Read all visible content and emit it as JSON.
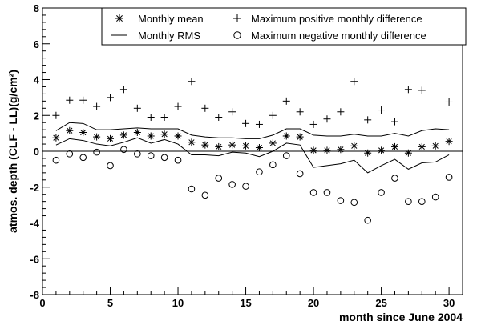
{
  "chart_data": {
    "type": "scatter",
    "xlabel": "month since June 2004",
    "ylabel": "atmos. depth (CLF - LL)(g/cm²)",
    "xlim": [
      0,
      31
    ],
    "ylim": [
      -8,
      8
    ],
    "x_ticks": [
      0,
      5,
      10,
      15,
      20,
      25,
      30
    ],
    "y_ticks": [
      -8,
      -6,
      -4,
      -2,
      0,
      2,
      4,
      6,
      8
    ],
    "grid": false,
    "legend_position": "top-right",
    "x": [
      1,
      2,
      3,
      4,
      5,
      6,
      7,
      8,
      9,
      10,
      11,
      12,
      13,
      14,
      15,
      16,
      17,
      18,
      19,
      20,
      21,
      22,
      23,
      24,
      25,
      26,
      27,
      28,
      29,
      30
    ],
    "series": [
      {
        "name": "Monthly mean",
        "marker": "asterisk",
        "values": [
          0.75,
          1.15,
          1.05,
          0.8,
          0.7,
          0.9,
          1.05,
          0.85,
          0.95,
          0.85,
          0.5,
          0.35,
          0.25,
          0.35,
          0.3,
          0.2,
          0.45,
          0.85,
          0.8,
          0.05,
          0.05,
          0.1,
          0.3,
          -0.1,
          0.05,
          0.25,
          -0.1,
          0.25,
          0.3,
          0.55
        ]
      },
      {
        "name": "Monthly RMS",
        "marker": "line",
        "upper": [
          1.15,
          1.6,
          1.55,
          1.2,
          1.2,
          1.25,
          1.3,
          1.25,
          1.25,
          1.25,
          0.9,
          0.8,
          0.75,
          0.75,
          0.7,
          0.7,
          0.9,
          1.25,
          1.25,
          0.9,
          0.85,
          0.85,
          0.95,
          0.85,
          0.85,
          1.0,
          0.85,
          1.15,
          1.25,
          1.2
        ],
        "lower": [
          0.35,
          0.7,
          0.6,
          0.4,
          0.3,
          0.5,
          0.75,
          0.45,
          0.65,
          0.4,
          -0.2,
          -0.2,
          -0.25,
          -0.05,
          -0.1,
          -0.3,
          0.0,
          0.45,
          0.35,
          -0.9,
          -0.8,
          -0.7,
          -0.5,
          -1.2,
          -0.8,
          -0.45,
          -1.0,
          -0.65,
          -0.6,
          -0.2
        ]
      },
      {
        "name": "Maximum positive monthly difference",
        "marker": "plus",
        "values": [
          2.0,
          2.85,
          2.85,
          2.5,
          3.0,
          3.45,
          2.4,
          1.9,
          1.9,
          2.5,
          3.9,
          2.4,
          1.9,
          2.2,
          1.55,
          1.5,
          2.0,
          2.8,
          2.2,
          1.5,
          1.8,
          2.2,
          3.9,
          1.75,
          2.3,
          1.65,
          3.45,
          3.4,
          null,
          2.75
        ]
      },
      {
        "name": "Maximum negative monthly difference",
        "marker": "circle",
        "values": [
          -0.5,
          -0.15,
          -0.35,
          -0.05,
          -0.8,
          0.1,
          -0.15,
          -0.25,
          -0.35,
          -0.5,
          -2.1,
          -2.45,
          -1.5,
          -1.85,
          -1.95,
          -1.15,
          -0.75,
          -0.25,
          -1.25,
          -2.3,
          -2.3,
          -2.75,
          -2.85,
          -3.85,
          -2.3,
          -1.5,
          -2.8,
          -2.8,
          -2.55,
          -1.45
        ]
      }
    ]
  }
}
